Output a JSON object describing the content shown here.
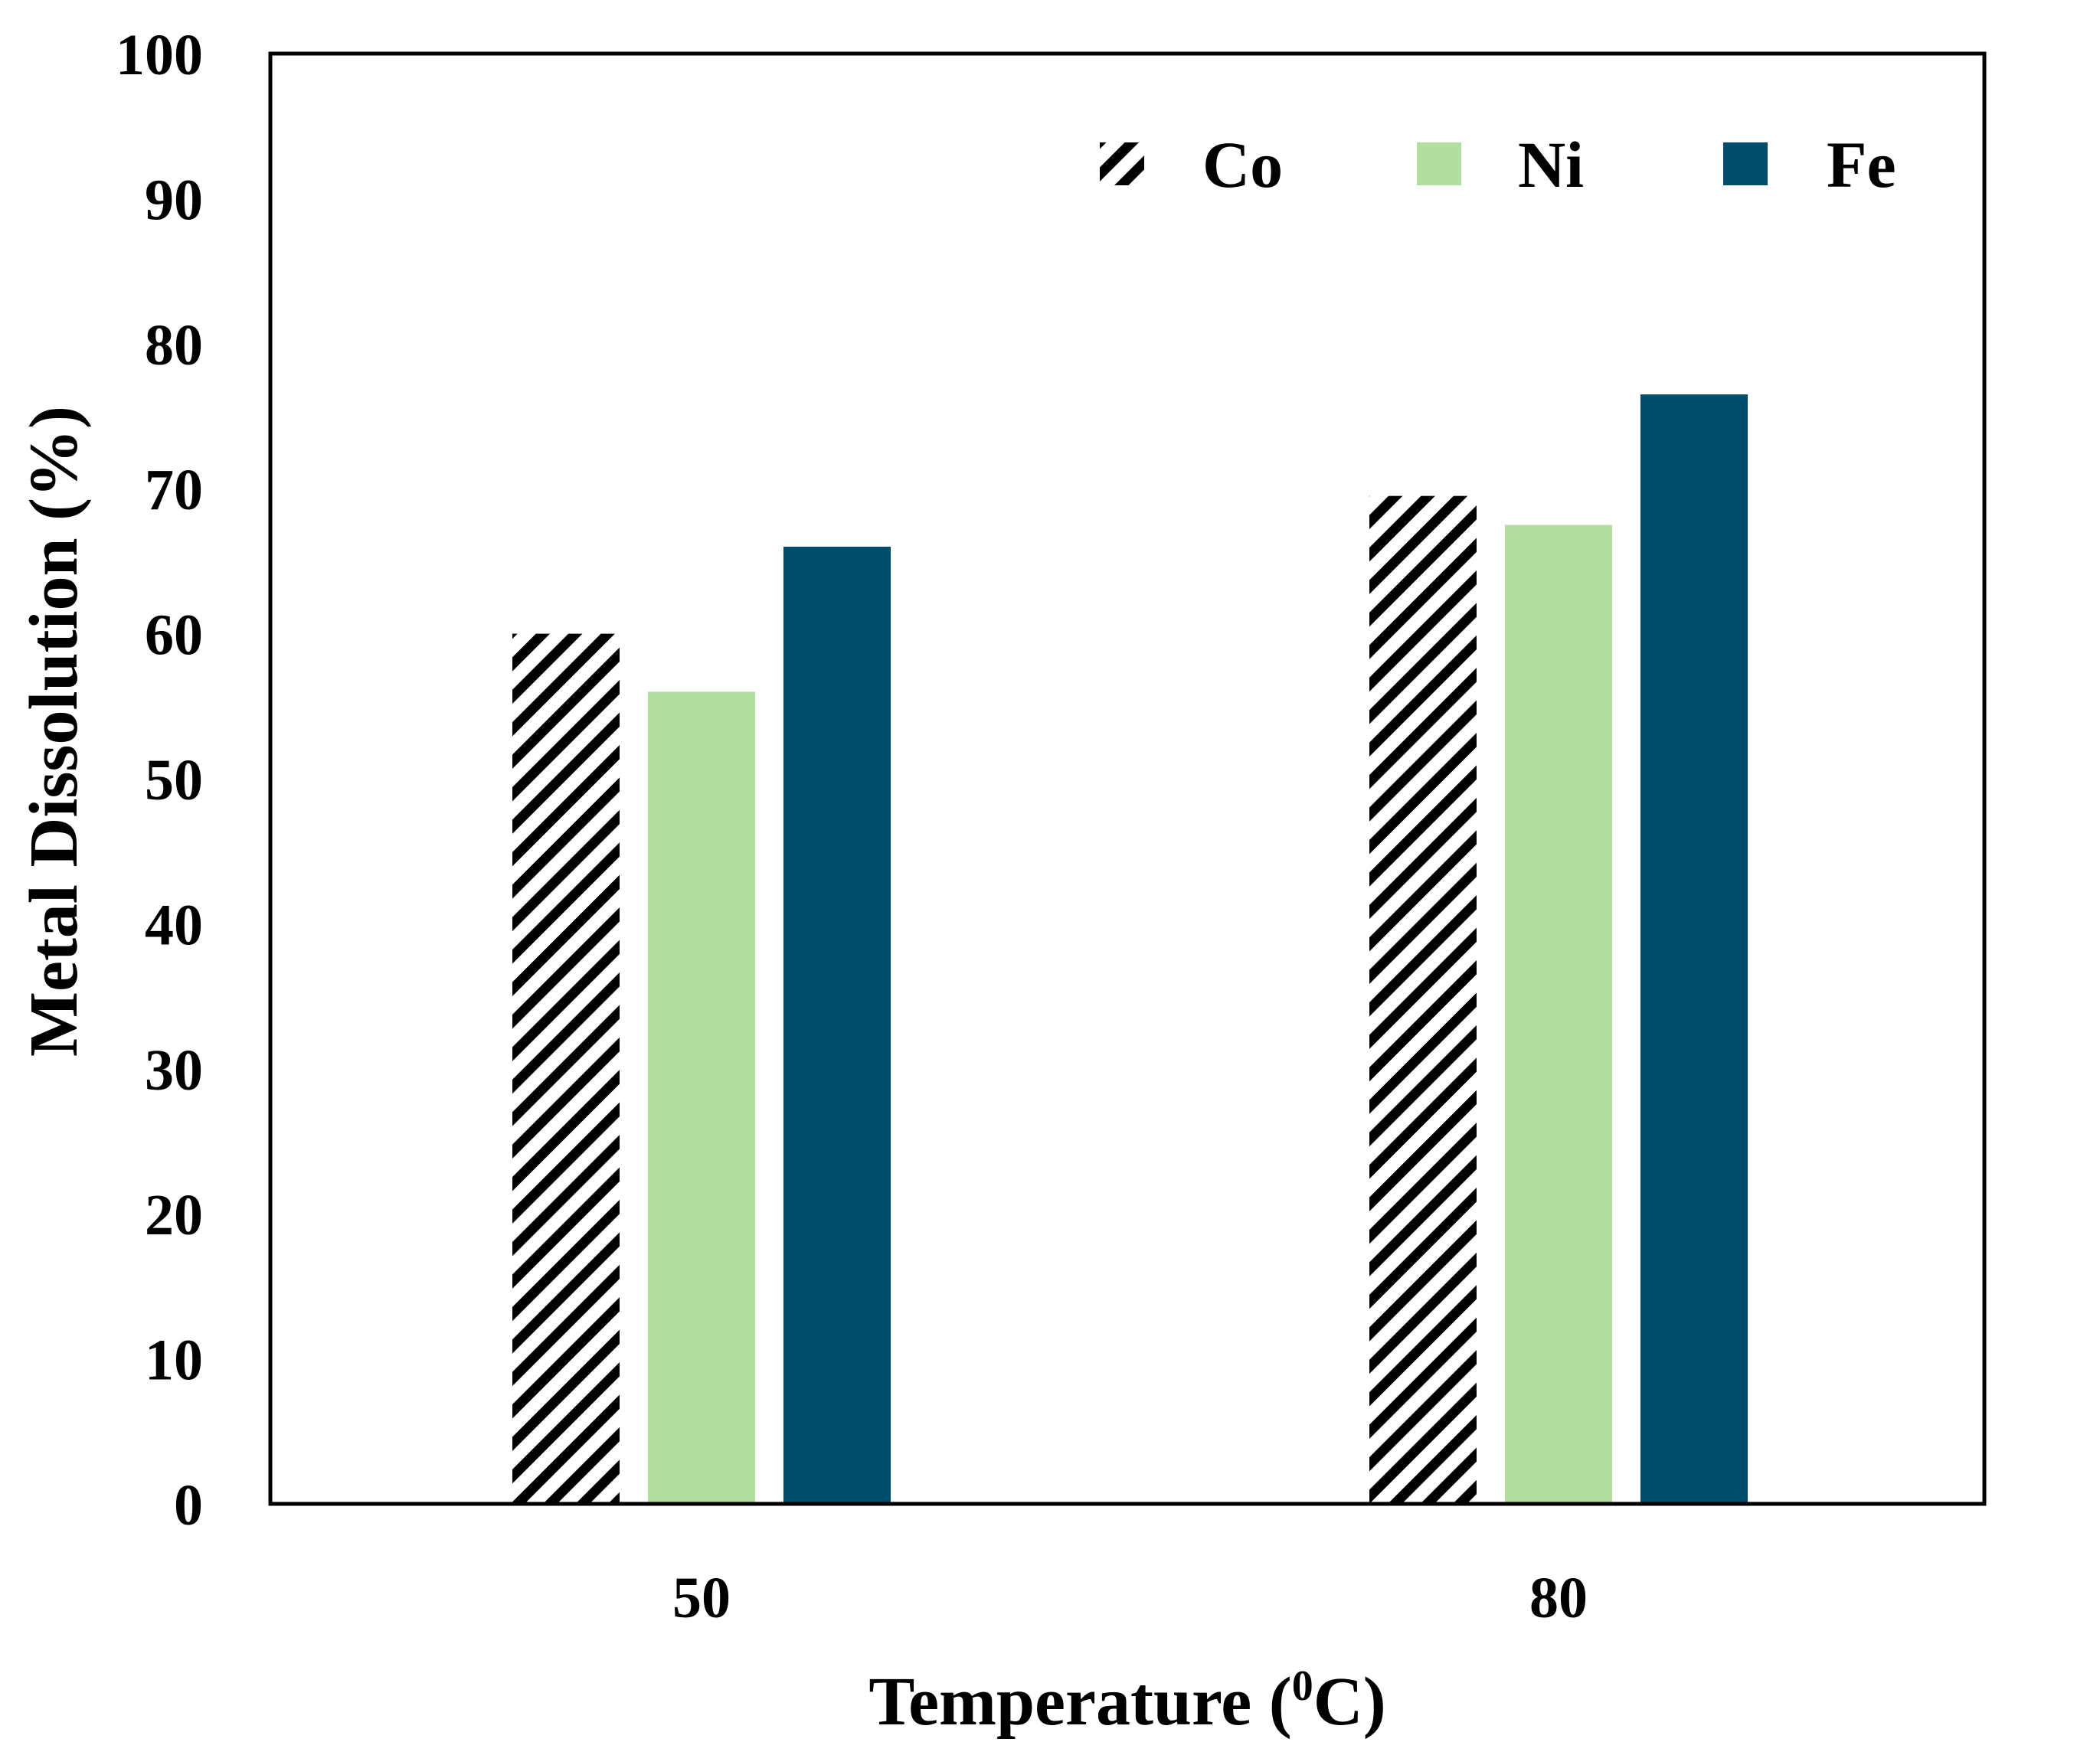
{
  "chart_data": {
    "type": "bar",
    "title": "",
    "xlabel": "Temperature (",
    "xlabel_sup": "0",
    "xlabel_suffix": "C)",
    "ylabel": "Metal Dissolution (%)",
    "ylim": [
      0,
      100
    ],
    "yticks": [
      0,
      10,
      20,
      30,
      40,
      50,
      60,
      70,
      80,
      90,
      100
    ],
    "categories": [
      "50",
      "80"
    ],
    "series": [
      {
        "name": "Co",
        "values": [
          60,
          69.5
        ],
        "color": "#000000",
        "pattern": "hatch"
      },
      {
        "name": "Ni",
        "values": [
          56,
          67.5
        ],
        "color": "#b2dfa0",
        "pattern": "solid"
      },
      {
        "name": "Fe",
        "values": [
          66,
          76.5
        ],
        "color": "#004c6b",
        "pattern": "solid"
      }
    ],
    "legend_position": "top-right",
    "grid": false
  }
}
